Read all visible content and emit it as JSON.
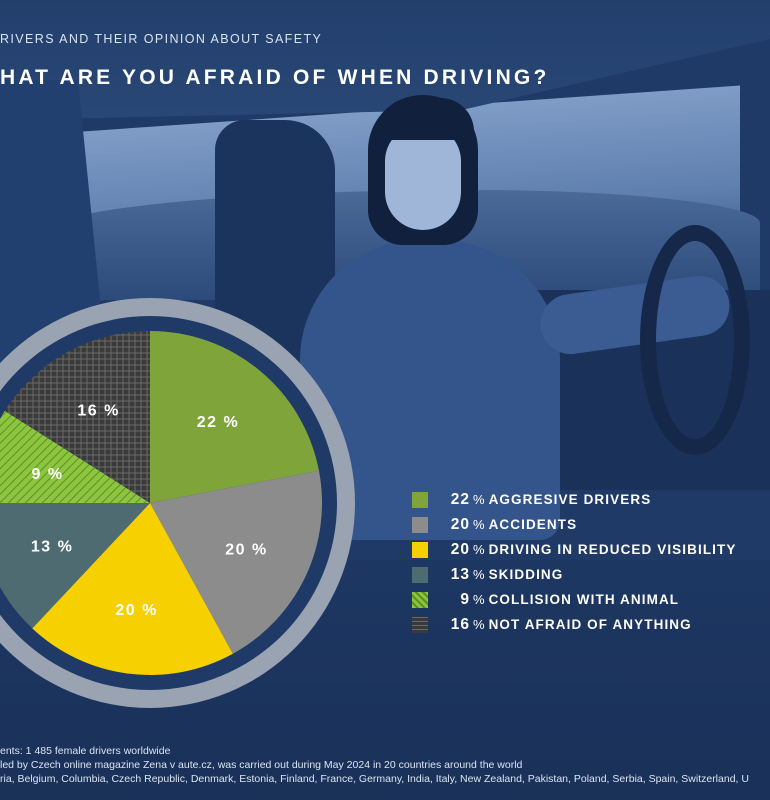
{
  "header": {
    "subtitle": "RIVERS AND THEIR OPINION ABOUT SAFETY",
    "title": "HAT ARE YOU AFRAID OF WHEN DRIVING?"
  },
  "colors": {
    "aggressive": "#7fa53a",
    "accidents": "#8c8c8c",
    "visibility": "#f7d000",
    "skidding": "#4f6b72",
    "animal": "#8cc63f",
    "not_afraid": "#3a3a3a",
    "ring": "#9aa3b2",
    "background": "#1f3a66"
  },
  "chart_data": {
    "type": "pie",
    "slices": [
      {
        "key": "aggressive",
        "label": "AGGRESIVE DRIVERS",
        "value": 22,
        "display": "22"
      },
      {
        "key": "accidents",
        "label": "ACCIDENTS",
        "value": 20,
        "display": "20"
      },
      {
        "key": "visibility",
        "label": "DRIVING IN REDUCED VISIBILITY",
        "value": 20,
        "display": "20"
      },
      {
        "key": "skidding",
        "label": "SKIDDING",
        "value": 13,
        "display": "13"
      },
      {
        "key": "animal",
        "label": "COLLISION WITH ANIMAL",
        "value": 9,
        "display": "9"
      },
      {
        "key": "not_afraid",
        "label": "NOT AFRAID OF ANYTHING",
        "value": 16,
        "display": "16"
      }
    ],
    "unit": "%"
  },
  "legend": [
    {
      "value": "22",
      "label": "AGGRESIVE DRIVERS"
    },
    {
      "value": "20",
      "label": "ACCIDENTS"
    },
    {
      "value": "20",
      "label": "DRIVING IN REDUCED VISIBILITY"
    },
    {
      "value": "13",
      "label": "SKIDDING"
    },
    {
      "value": "9",
      "label": "COLLISION WITH ANIMAL"
    },
    {
      "value": "16",
      "label": "NOT AFRAID OF ANYTHING"
    }
  ],
  "notes": {
    "line1": "ents: 1 485 female drivers worldwide",
    "line2": "led by Czech online magazine Zena v aute.cz, was carried out during May 2024 in 20 countries around the world",
    "line3": "ria, Belgium, Columbia, Czech Republic, Denmark, Estonia, Finland, France, Germany, India, Italy, New Zealand, Pakistan, Poland, Serbia, Spain, Switzerland, U"
  }
}
